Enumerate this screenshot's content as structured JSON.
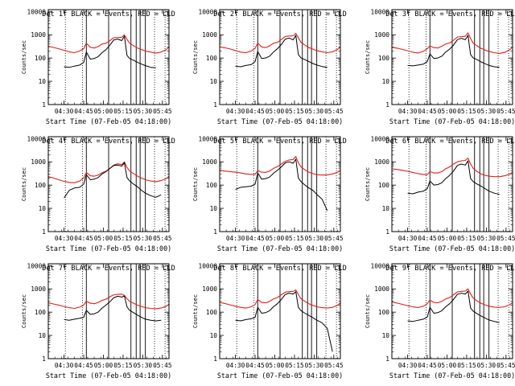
{
  "colors": {
    "events": "#000000",
    "lld": "#e0201b",
    "frame": "#000000",
    "background": "#ffffff"
  },
  "chart_data": {
    "type": "line",
    "yscale": "log",
    "ylim": [
      1,
      12000
    ],
    "ylabel": "Counts/sec",
    "xlabel": "Start Time (07-Feb-05 04:18:00)",
    "x_range_min": [
      0,
      92
    ],
    "x_ticks": [
      {
        "t": 12,
        "label": "04:30"
      },
      {
        "t": 27,
        "label": "04:45"
      },
      {
        "t": 42,
        "label": "05:00"
      },
      {
        "t": 57,
        "label": "05:15"
      },
      {
        "t": 72,
        "label": "05:30"
      },
      {
        "t": 87,
        "label": "05:45"
      }
    ],
    "y_ticks": [
      {
        "v": 1,
        "label": "1"
      },
      {
        "v": 10,
        "label": "10"
      },
      {
        "v": 100,
        "label": "100"
      },
      {
        "v": 1000,
        "label": "1000"
      },
      {
        "v": 10000,
        "label": "10000"
      }
    ],
    "dotted_lines_min": [
      13,
      26,
      81,
      89
    ],
    "solid_lines_min": [
      29,
      46,
      63,
      67,
      70,
      74
    ],
    "x_minutes": [
      0,
      4,
      8,
      12,
      16,
      20,
      24,
      27,
      29,
      32,
      35,
      38,
      41,
      44,
      47,
      50,
      53,
      56,
      58,
      60,
      62,
      65,
      68,
      71,
      74,
      78,
      82,
      86,
      90,
      92
    ],
    "panels": [
      {
        "title": "Det 1f BLACK = Events, RED = LLD",
        "lld": [
          320,
          285,
          250,
          215,
          185,
          170,
          200,
          250,
          430,
          290,
          270,
          310,
          400,
          430,
          560,
          750,
          760,
          780,
          990,
          640,
          430,
          340,
          270,
          230,
          200,
          180,
          165,
          180,
          230,
          300
        ],
        "events": [
          null,
          null,
          null,
          42,
          40,
          45,
          50,
          65,
          180,
          90,
          95,
          115,
          170,
          230,
          360,
          600,
          650,
          560,
          870,
          130,
          95,
          80,
          65,
          55,
          47,
          40,
          38,
          null,
          null,
          null
        ]
      },
      {
        "title": "Det 2f BLACK = Events, RED = LLD",
        "lld": [
          300,
          275,
          245,
          210,
          180,
          168,
          200,
          260,
          440,
          300,
          280,
          330,
          430,
          470,
          620,
          850,
          880,
          900,
          1150,
          720,
          470,
          360,
          280,
          240,
          205,
          185,
          170,
          185,
          235,
          300
        ],
        "events": [
          null,
          null,
          null,
          45,
          42,
          48,
          52,
          70,
          190,
          95,
          100,
          120,
          180,
          250,
          380,
          650,
          720,
          600,
          940,
          140,
          100,
          85,
          70,
          58,
          50,
          43,
          40,
          null,
          null,
          null
        ]
      },
      {
        "title": "Det 3f BLACK = Events, RED = LLD",
        "lld": [
          290,
          265,
          235,
          205,
          178,
          165,
          195,
          250,
          330,
          280,
          270,
          320,
          400,
          440,
          580,
          800,
          820,
          860,
          1200,
          690,
          430,
          330,
          260,
          220,
          190,
          170,
          158,
          175,
          230,
          300
        ],
        "events": [
          null,
          null,
          null,
          48,
          46,
          50,
          55,
          70,
          150,
          95,
          100,
          120,
          180,
          240,
          360,
          620,
          700,
          610,
          930,
          140,
          100,
          85,
          68,
          57,
          48,
          42,
          40,
          null,
          null,
          null
        ]
      },
      {
        "title": "Det 4f BLACK = Events, RED = LLD",
        "lld": [
          230,
          200,
          170,
          145,
          130,
          125,
          150,
          200,
          350,
          250,
          240,
          270,
          340,
          390,
          520,
          730,
          820,
          760,
          1000,
          580,
          400,
          310,
          240,
          200,
          170,
          150,
          140,
          155,
          190,
          240
        ],
        "events": [
          null,
          null,
          null,
          28,
          60,
          75,
          80,
          110,
          280,
          170,
          180,
          210,
          300,
          380,
          520,
          700,
          720,
          650,
          900,
          210,
          150,
          110,
          85,
          60,
          45,
          35,
          30,
          38,
          null,
          null
        ]
      },
      {
        "title": "Det 5f BLACK = Events, RED = LLD",
        "lld": [
          420,
          400,
          380,
          360,
          330,
          300,
          290,
          290,
          420,
          360,
          350,
          400,
          520,
          620,
          800,
          1050,
          1200,
          1250,
          1700,
          900,
          600,
          450,
          360,
          310,
          280,
          270,
          275,
          300,
          360,
          420
        ],
        "events": [
          null,
          null,
          null,
          65,
          80,
          85,
          90,
          110,
          330,
          180,
          190,
          220,
          320,
          430,
          600,
          900,
          1000,
          870,
          1300,
          200,
          140,
          100,
          75,
          60,
          40,
          25,
          8,
          null,
          null,
          null
        ]
      },
      {
        "title": "Det 6f BLACK = Events, RED = LLD",
        "lld": [
          500,
          470,
          430,
          390,
          350,
          310,
          290,
          280,
          380,
          330,
          330,
          380,
          500,
          600,
          800,
          1000,
          1100,
          1150,
          1450,
          800,
          520,
          380,
          300,
          260,
          240,
          230,
          230,
          250,
          300,
          360
        ],
        "events": [
          null,
          null,
          null,
          45,
          42,
          50,
          55,
          70,
          150,
          100,
          105,
          125,
          190,
          260,
          400,
          700,
          800,
          720,
          1100,
          190,
          140,
          110,
          90,
          70,
          55,
          45,
          40,
          null,
          null,
          null
        ]
      },
      {
        "title": "Det 7f BLACK = Events, RED = LLD",
        "lld": [
          250,
          225,
          200,
          175,
          155,
          145,
          165,
          200,
          300,
          240,
          230,
          260,
          320,
          360,
          460,
          560,
          580,
          590,
          520,
          380,
          290,
          240,
          200,
          175,
          155,
          145,
          140,
          150,
          180,
          220
        ],
        "events": [
          null,
          null,
          null,
          48,
          45,
          50,
          55,
          60,
          120,
          80,
          85,
          100,
          150,
          200,
          280,
          420,
          480,
          440,
          500,
          170,
          120,
          95,
          75,
          60,
          50,
          45,
          42,
          45,
          null,
          null
        ]
      },
      {
        "title": "Det 8f BLACK = Events, RED = LLD",
        "lld": [
          260,
          235,
          205,
          180,
          160,
          150,
          170,
          210,
          350,
          260,
          250,
          290,
          370,
          420,
          560,
          720,
          760,
          780,
          900,
          560,
          380,
          290,
          230,
          195,
          170,
          155,
          150,
          160,
          200,
          250
        ],
        "events": [
          null,
          null,
          null,
          45,
          42,
          48,
          52,
          60,
          160,
          90,
          95,
          115,
          170,
          230,
          350,
          580,
          650,
          600,
          760,
          160,
          115,
          90,
          72,
          58,
          45,
          35,
          20,
          2,
          null,
          null
        ]
      },
      {
        "title": "Det 9f BLACK = Events, RED = LLD",
        "lld": [
          270,
          245,
          215,
          190,
          168,
          158,
          180,
          230,
          330,
          260,
          255,
          290,
          370,
          420,
          560,
          740,
          780,
          810,
          1000,
          600,
          400,
          300,
          240,
          205,
          180,
          165,
          160,
          170,
          210,
          260
        ],
        "events": [
          null,
          null,
          null,
          42,
          40,
          45,
          50,
          62,
          160,
          90,
          95,
          115,
          170,
          230,
          350,
          590,
          650,
          600,
          800,
          150,
          110,
          85,
          68,
          56,
          46,
          40,
          36,
          null,
          null,
          null
        ]
      }
    ]
  }
}
